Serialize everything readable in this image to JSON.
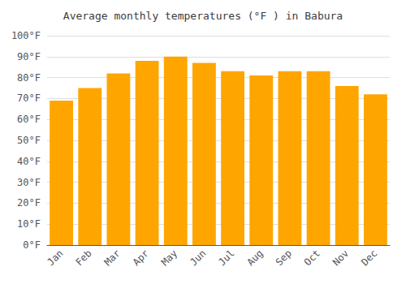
{
  "chart_data": {
    "type": "bar",
    "title": "Average monthly temperatures (°F ) in Babura",
    "categories": [
      "Jan",
      "Feb",
      "Mar",
      "Apr",
      "May",
      "Jun",
      "Jul",
      "Aug",
      "Sep",
      "Oct",
      "Nov",
      "Dec"
    ],
    "values": [
      69,
      75,
      82,
      88,
      90,
      87,
      83,
      81,
      83,
      83,
      76,
      72
    ],
    "color": "#FFA500",
    "ylim": [
      0,
      100
    ],
    "yticks": [
      {
        "value": 0,
        "label": "0°F"
      },
      {
        "value": 10,
        "label": "10°F"
      },
      {
        "value": 20,
        "label": "20°F"
      },
      {
        "value": 30,
        "label": "30°F"
      },
      {
        "value": 40,
        "label": "40°F"
      },
      {
        "value": 50,
        "label": "50°F"
      },
      {
        "value": 60,
        "label": "60°F"
      },
      {
        "value": 70,
        "label": "70°F"
      },
      {
        "value": 80,
        "label": "80°F"
      },
      {
        "value": 90,
        "label": "90°F"
      },
      {
        "value": 100,
        "label": "100°F"
      }
    ],
    "grid": true
  }
}
